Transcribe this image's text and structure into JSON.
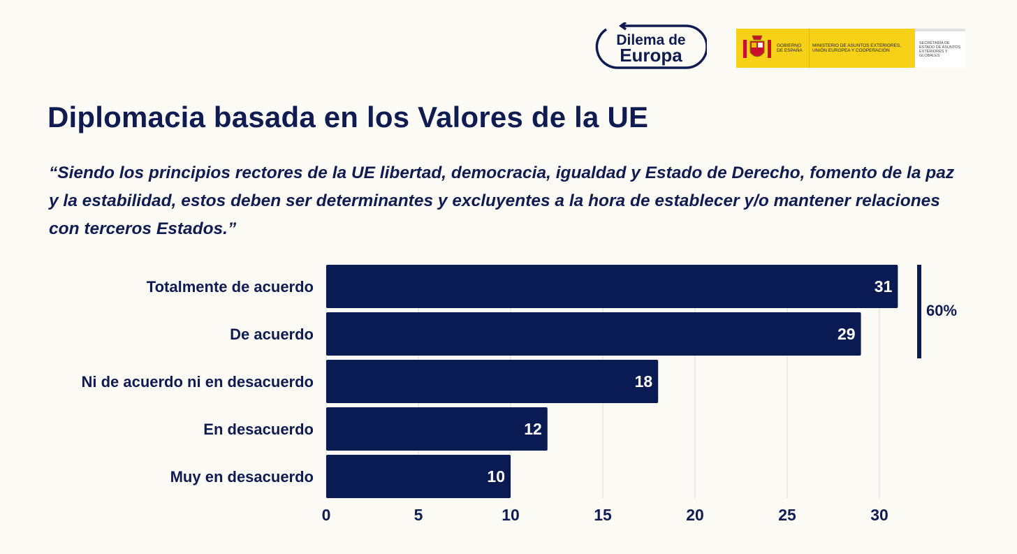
{
  "logo": {
    "line1": "Dilema de",
    "line2": "Europa"
  },
  "government": {
    "gobierno": "GOBIERNO DE ESPAÑA",
    "ministerio": "MINISTERIO DE ASUNTOS EXTERIORES, UNIÓN EUROPEA Y COOPERACIÓN",
    "secretaria": "SECRETARÍA DE ESTADO DE ASUNTOS EXTERIORES Y GLOBALES"
  },
  "title": "Diplomacia basada en los Valores de la UE",
  "quote": "“Siendo los principios rectores de la UE libertad, democracia, igualdad y Estado de Derecho, fomento de la paz y la estabilidad, estos deben ser determinantes y excluyentes a la hora de establecer y/o mantener relaciones con terceros Estados.”",
  "colors": {
    "bar": "#0a1a52",
    "text": "#0f1c52",
    "grid": "#d9d9e3",
    "background": "#fcfaf5"
  },
  "chart_data": {
    "type": "bar",
    "orientation": "horizontal",
    "categories": [
      "Totalmente de acuerdo",
      "De acuerdo",
      "Ni de acuerdo ni en desacuerdo",
      "En desacuerdo",
      "Muy en desacuerdo"
    ],
    "values": [
      31,
      29,
      18,
      12,
      10
    ],
    "xlim": [
      0,
      32
    ],
    "xticks": [
      0,
      5,
      10,
      15,
      20,
      25,
      30
    ],
    "grid": true,
    "annotation": {
      "label": "60%",
      "spans": [
        "Totalmente de acuerdo",
        "De acuerdo"
      ]
    }
  }
}
